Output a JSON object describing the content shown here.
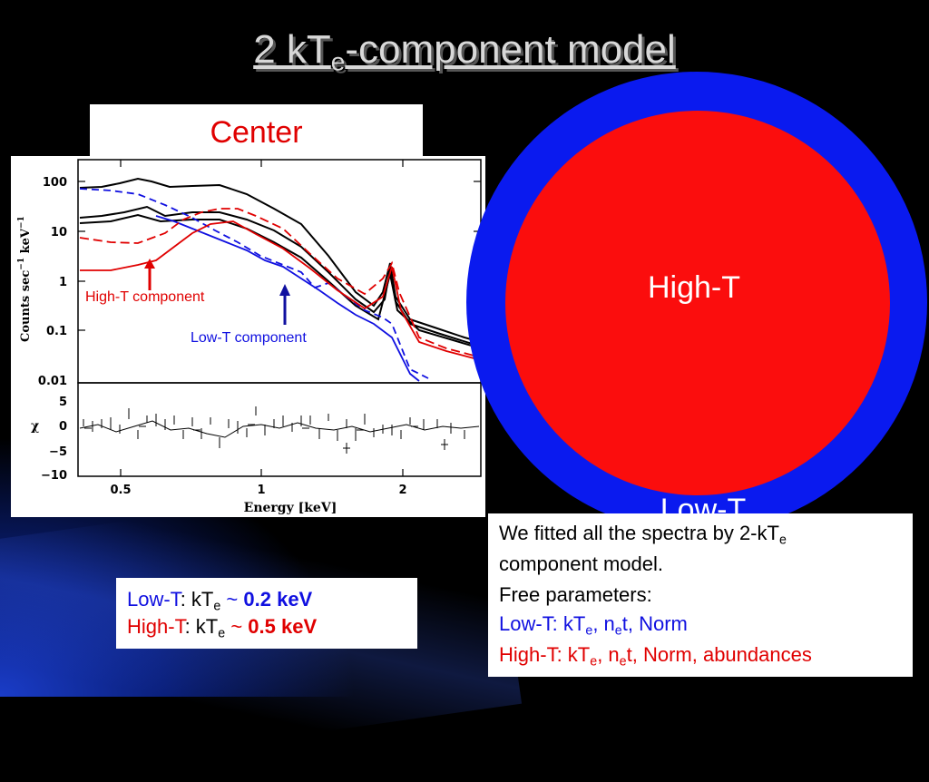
{
  "title": {
    "main": "2 kT",
    "sub": "e",
    "rest": "-component model"
  },
  "center_label": "Center",
  "plot": {
    "y_axis_label": "Counts sec",
    "y_ticks": [
      "100",
      "10",
      "1",
      "0.1",
      "0.01"
    ],
    "chi_label": "χ",
    "chi_ticks": [
      "5",
      "0",
      "−5",
      "−10"
    ],
    "x_ticks": [
      "0.5",
      "1",
      "2"
    ],
    "x_axis_label": "Energy [keV]",
    "annotation_high": "High-T component",
    "annotation_low": "Low-T component",
    "colors": {
      "high": "#e00000",
      "low": "#1010e0",
      "data": "#000000"
    }
  },
  "circle": {
    "inner_label": "High-T",
    "outer_label": "Low-T",
    "inner_color": "#fb0d0d",
    "outer_color": "#0a1aef"
  },
  "params": {
    "low_name": "Low-T",
    "low_text": ": kT",
    "low_sub": "e",
    "low_tilde": " ~ ",
    "low_value": "0.2 keV",
    "high_name": "High-T",
    "high_text": ": kT",
    "high_sub": "e",
    "high_tilde": " ~ ",
    "high_value": "0.5 keV"
  },
  "description": {
    "line1_a": "We fitted all the spectra by 2-kT",
    "line1_sub": "e",
    "line2": "component model.",
    "line3": "Free parameters:",
    "line4_a": "Low-T: kT",
    "line4_sub1": "e",
    "line4_b": ", n",
    "line4_sub2": "e",
    "line4_c": "t, Norm",
    "line5_a": "High-T: kT",
    "line5_sub1": "e",
    "line5_b": ", n",
    "line5_sub2": "e",
    "line5_c": "t, Norm, abundances"
  }
}
